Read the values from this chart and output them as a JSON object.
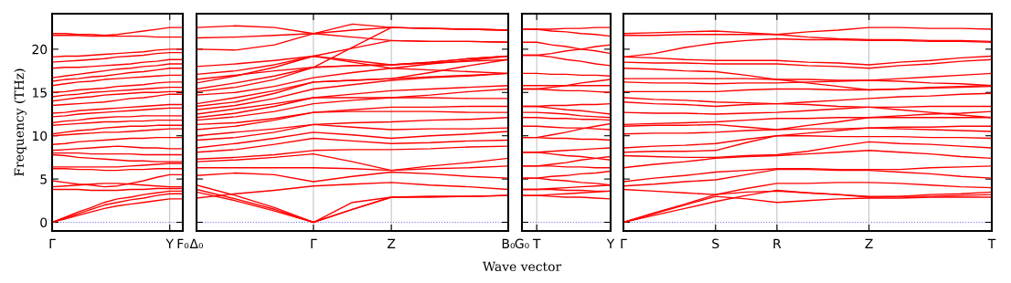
{
  "chart_data": [
    {
      "type": "line",
      "ylabel": "Frequency (THz)",
      "categories": [
        "Γ",
        null,
        null,
        null,
        null,
        null,
        null,
        null,
        null,
        "Y",
        "F₀"
      ],
      "ylim": [
        -1,
        24.1
      ],
      "yticks": [
        0,
        5,
        10,
        15,
        20
      ],
      "line_style": "solid",
      "marker": "none",
      "ref_lines": [
        {
          "axis": "y",
          "value": 0,
          "color": "#6b6bff",
          "line_style": "dotted"
        },
        {
          "axis": "x",
          "value": "Y",
          "color": "#b0b0b0",
          "line_style": "solid"
        }
      ],
      "series": [
        {
          "color": "#ff0000",
          "values": [
            0,
            0.4,
            0.8,
            1.2,
            1.6,
            1.9,
            2.1,
            2.3,
            2.5,
            2.7,
            2.7
          ]
        },
        {
          "color": "#ff0000",
          "values": [
            0,
            0.5,
            1.0,
            1.5,
            2.0,
            2.3,
            2.6,
            2.8,
            3.1,
            3.3,
            3.3
          ]
        },
        {
          "color": "#ff0000",
          "values": [
            0,
            0.6,
            1.2,
            1.7,
            2.3,
            2.7,
            2.9,
            3.2,
            3.4,
            3.6,
            3.6
          ]
        },
        {
          "color": "#ff0000",
          "values": [
            3.8,
            3.8,
            3.8,
            3.7,
            3.7,
            3.7,
            3.8,
            3.8,
            3.9,
            3.9,
            3.9
          ]
        },
        {
          "color": "#ff0000",
          "values": [
            4.1,
            4.2,
            4.3,
            4.4,
            4.5,
            4.5,
            4.4,
            4.3,
            4.2,
            4.1,
            4.1
          ]
        },
        {
          "color": "#ff0000",
          "values": [
            4.8,
            4.6,
            4.4,
            4.3,
            4.1,
            4.2,
            4.5,
            4.8,
            5.2,
            5.5,
            5.5
          ]
        },
        {
          "color": "#ff0000",
          "values": [
            6.2,
            6.2,
            6.1,
            6.1,
            6.0,
            6.0,
            6.1,
            6.1,
            6.2,
            6.2,
            6.2
          ]
        },
        {
          "color": "#ff0000",
          "values": [
            6.4,
            6.4,
            6.4,
            6.4,
            6.4,
            6.4,
            6.5,
            6.6,
            6.7,
            6.8,
            6.8
          ]
        },
        {
          "color": "#ff0000",
          "values": [
            7.8,
            7.7,
            7.5,
            7.4,
            7.3,
            7.2,
            7.1,
            7.1,
            7.0,
            7.0,
            7.0
          ]
        },
        {
          "color": "#ff0000",
          "values": [
            8.0,
            8.0,
            8.0,
            7.9,
            7.9,
            7.9,
            7.9,
            7.8,
            7.8,
            7.8,
            7.8
          ]
        },
        {
          "color": "#ff0000",
          "values": [
            8.3,
            8.4,
            8.5,
            8.6,
            8.7,
            8.8,
            8.7,
            8.6,
            8.6,
            8.5,
            8.5
          ]
        },
        {
          "color": "#ff0000",
          "values": [
            9.0,
            9.1,
            9.3,
            9.4,
            9.5,
            9.6,
            9.7,
            9.7,
            9.8,
            9.8,
            9.8
          ]
        },
        {
          "color": "#ff0000",
          "values": [
            10.0,
            10.1,
            10.2,
            10.3,
            10.4,
            10.4,
            10.5,
            10.6,
            10.7,
            10.8,
            10.8
          ]
        },
        {
          "color": "#ff0000",
          "values": [
            10.2,
            10.4,
            10.6,
            10.7,
            10.9,
            11.0,
            11.1,
            11.1,
            11.2,
            11.2,
            11.2
          ]
        },
        {
          "color": "#ff0000",
          "values": [
            11.2,
            11.3,
            11.4,
            11.5,
            11.6,
            11.6,
            11.7,
            11.7,
            11.8,
            11.8,
            11.8
          ]
        },
        {
          "color": "#ff0000",
          "values": [
            11.5,
            11.7,
            11.8,
            12.0,
            12.1,
            12.2,
            12.2,
            12.3,
            12.3,
            12.3,
            12.3
          ]
        },
        {
          "color": "#ff0000",
          "values": [
            12.2,
            12.3,
            12.5,
            12.6,
            12.7,
            12.8,
            12.9,
            13.0,
            13.1,
            13.2,
            13.2
          ]
        },
        {
          "color": "#ff0000",
          "values": [
            12.6,
            12.7,
            12.9,
            13.0,
            13.1,
            13.2,
            13.3,
            13.4,
            13.5,
            13.6,
            13.6
          ]
        },
        {
          "color": "#ff0000",
          "values": [
            13.5,
            13.6,
            13.7,
            13.8,
            13.9,
            14.1,
            14.3,
            14.4,
            14.6,
            14.8,
            14.8
          ]
        },
        {
          "color": "#ff0000",
          "values": [
            14.0,
            14.2,
            14.4,
            14.5,
            14.7,
            14.8,
            14.9,
            15.0,
            15.0,
            15.1,
            15.1
          ]
        },
        {
          "color": "#ff0000",
          "values": [
            14.5,
            14.7,
            14.8,
            15.0,
            15.1,
            15.2,
            15.3,
            15.4,
            15.5,
            15.6,
            15.6
          ]
        },
        {
          "color": "#ff0000",
          "values": [
            15.0,
            15.1,
            15.3,
            15.4,
            15.5,
            15.7,
            15.8,
            15.9,
            16.1,
            16.2,
            16.2
          ]
        },
        {
          "color": "#ff0000",
          "values": [
            15.8,
            16.0,
            16.2,
            16.3,
            16.5,
            16.6,
            16.7,
            16.8,
            16.9,
            17.0,
            17.0
          ]
        },
        {
          "color": "#ff0000",
          "values": [
            16.3,
            16.5,
            16.6,
            16.8,
            16.9,
            17.1,
            17.3,
            17.4,
            17.6,
            17.8,
            17.8
          ]
        },
        {
          "color": "#ff0000",
          "values": [
            16.7,
            16.9,
            17.1,
            17.3,
            17.5,
            17.7,
            17.8,
            18.0,
            18.1,
            18.3,
            18.3
          ]
        },
        {
          "color": "#ff0000",
          "values": [
            17.8,
            17.9,
            17.9,
            18.0,
            18.1,
            18.2,
            18.3,
            18.5,
            18.6,
            18.8,
            18.8
          ]
        },
        {
          "color": "#ff0000",
          "values": [
            18.5,
            18.6,
            18.7,
            18.8,
            18.9,
            19.1,
            19.2,
            19.3,
            19.5,
            19.6,
            19.6
          ]
        },
        {
          "color": "#ff0000",
          "values": [
            19.1,
            19.2,
            19.2,
            19.3,
            19.4,
            19.5,
            19.6,
            19.7,
            19.9,
            20.0,
            20.0
          ]
        },
        {
          "color": "#ff0000",
          "values": [
            21.6,
            21.6,
            21.6,
            21.5,
            21.5,
            21.5,
            21.5,
            21.5,
            21.4,
            21.4,
            21.4
          ]
        },
        {
          "color": "#ff0000",
          "values": [
            21.8,
            21.8,
            21.7,
            21.7,
            21.6,
            21.7,
            21.9,
            22.1,
            22.3,
            22.5,
            22.5
          ]
        }
      ]
    },
    {
      "type": "line",
      "categories": [
        "Δ₀",
        null,
        null,
        "Γ",
        null,
        "Z",
        null,
        null,
        "B₀"
      ],
      "ylim": [
        -1,
        24.1
      ],
      "yticks": [
        0,
        5,
        10,
        15,
        20
      ],
      "tick_labels": "x",
      "grid": "x",
      "line_style": "solid",
      "marker": "none",
      "ref_lines": [
        {
          "axis": "y",
          "value": 0,
          "color": "#6b6bff",
          "line_style": "dotted"
        }
      ],
      "series": [
        {
          "color": "#ff0000",
          "values": [
            2.8,
            3.3,
            3.7,
            4.2,
            4.4,
            4.6,
            4.3,
            4.1,
            3.8
          ]
        },
        {
          "color": "#ff0000",
          "values": [
            3.5,
            2.5,
            1.3,
            0,
            1.5,
            2.9,
            3.0,
            3.0,
            3.1
          ]
        },
        {
          "color": "#ff0000",
          "values": [
            3.8,
            2.7,
            1.5,
            0,
            1.5,
            2.9,
            3.0,
            3.0,
            3.1
          ]
        },
        {
          "color": "#ff0000",
          "values": [
            4.3,
            3.1,
            1.7,
            0,
            2.3,
            2.9,
            2.9,
            3.0,
            3.1
          ]
        },
        {
          "color": "#ff0000",
          "values": [
            5.4,
            5.7,
            5.5,
            4.7,
            5.3,
            5.8,
            5.6,
            5.3,
            5.1
          ]
        },
        {
          "color": "#ff0000",
          "values": [
            6.3,
            6.3,
            6.3,
            6.3,
            6.2,
            6.0,
            6.2,
            6.3,
            6.5
          ]
        },
        {
          "color": "#ff0000",
          "values": [
            7.0,
            7.2,
            7.5,
            7.9,
            7.0,
            6.0,
            6.5,
            6.9,
            7.4
          ]
        },
        {
          "color": "#ff0000",
          "values": [
            7.3,
            7.5,
            7.8,
            8.3,
            8.4,
            8.4,
            8.5,
            8.7,
            8.8
          ]
        },
        {
          "color": "#ff0000",
          "values": [
            8.1,
            8.4,
            9.0,
            9.7,
            9.4,
            9.1,
            9.2,
            9.4,
            9.5
          ]
        },
        {
          "color": "#ff0000",
          "values": [
            8.6,
            9.1,
            9.7,
            10.4,
            10.1,
            9.7,
            10.0,
            10.2,
            10.5
          ]
        },
        {
          "color": "#ff0000",
          "values": [
            9.5,
            9.8,
            10.4,
            11.3,
            11.0,
            10.7,
            10.8,
            10.8,
            10.9
          ]
        },
        {
          "color": "#ff0000",
          "values": [
            10.0,
            10.4,
            10.8,
            11.3,
            11.5,
            11.6,
            11.8,
            11.9,
            12.1
          ]
        },
        {
          "color": "#ff0000",
          "values": [
            10.7,
            11.1,
            11.8,
            12.7,
            12.8,
            12.8,
            12.8,
            12.7,
            12.7
          ]
        },
        {
          "color": "#ff0000",
          "values": [
            11.3,
            11.5,
            12.0,
            12.7,
            13.0,
            13.3,
            13.3,
            13.4,
            13.4
          ]
        },
        {
          "color": "#ff0000",
          "values": [
            11.8,
            12.2,
            12.8,
            13.7,
            14.1,
            14.4,
            14.4,
            14.3,
            14.3
          ]
        },
        {
          "color": "#ff0000",
          "values": [
            12.1,
            12.6,
            13.4,
            14.4,
            14.4,
            14.4,
            14.7,
            15.1,
            15.4
          ]
        },
        {
          "color": "#ff0000",
          "values": [
            12.5,
            13.1,
            13.7,
            14.4,
            14.8,
            15.2,
            15.4,
            15.6,
            15.8
          ]
        },
        {
          "color": "#ff0000",
          "values": [
            13.0,
            13.5,
            14.3,
            15.4,
            15.9,
            16.4,
            16.7,
            16.9,
            17.2
          ]
        },
        {
          "color": "#ff0000",
          "values": [
            13.4,
            13.9,
            14.9,
            16.2,
            16.4,
            16.6,
            16.8,
            17.0,
            17.2
          ]
        },
        {
          "color": "#ff0000",
          "values": [
            13.7,
            14.4,
            15.2,
            16.2,
            16.4,
            16.6,
            17.3,
            18.1,
            18.8
          ]
        },
        {
          "color": "#ff0000",
          "values": [
            14.7,
            15.0,
            15.7,
            16.7,
            17.3,
            17.8,
            18.3,
            18.7,
            19.2
          ]
        },
        {
          "color": "#ff0000",
          "values": [
            15.1,
            15.6,
            16.5,
            17.9,
            18.1,
            18.2,
            18.5,
            18.9,
            19.2
          ]
        },
        {
          "color": "#ff0000",
          "values": [
            15.4,
            16.1,
            16.9,
            17.9,
            18.1,
            18.2,
            18.4,
            18.6,
            18.8
          ]
        },
        {
          "color": "#ff0000",
          "values": [
            16.1,
            16.9,
            17.9,
            19.2,
            20.1,
            21.0,
            20.9,
            20.9,
            20.8
          ]
        },
        {
          "color": "#ff0000",
          "values": [
            16.5,
            17.0,
            17.5,
            17.9,
            20.2,
            22.5,
            22.4,
            22.3,
            22.2
          ]
        },
        {
          "color": "#ff0000",
          "values": [
            17.1,
            17.5,
            18.2,
            19.2,
            18.7,
            18.2,
            18.5,
            18.9,
            19.2
          ]
        },
        {
          "color": "#ff0000",
          "values": [
            18.0,
            18.3,
            18.7,
            19.2,
            18.5,
            17.8,
            17.6,
            17.4,
            17.2
          ]
        },
        {
          "color": "#ff0000",
          "values": [
            20.0,
            19.9,
            20.5,
            21.8,
            22.2,
            22.5,
            22.4,
            22.3,
            22.2
          ]
        },
        {
          "color": "#ff0000",
          "values": [
            21.3,
            21.4,
            21.6,
            21.8,
            21.4,
            21.0,
            20.9,
            20.9,
            20.8
          ]
        },
        {
          "color": "#ff0000",
          "values": [
            22.5,
            22.7,
            22.5,
            21.8,
            22.9,
            22.5,
            22.4,
            22.3,
            22.2
          ]
        }
      ]
    },
    {
      "type": "line",
      "xlabel": "Wave vector",
      "categories": [
        "G₀",
        "T",
        null,
        null,
        null,
        null,
        "Y"
      ],
      "ylim": [
        -1,
        24.1
      ],
      "yticks": [
        0,
        5,
        10,
        15,
        20
      ],
      "tick_labels": "x",
      "line_style": "solid",
      "marker": "none",
      "ref_lines": [
        {
          "axis": "y",
          "value": 0,
          "color": "#6b6bff",
          "line_style": "dotted"
        },
        {
          "axis": "x",
          "value": "T",
          "color": "#b0b0b0",
          "line_style": "solid"
        }
      ],
      "series": [
        {
          "color": "#ff0000",
          "values": [
            22.3,
            22.3,
            22.3,
            22.4,
            22.4,
            22.5,
            22.5
          ]
        },
        {
          "color": "#ff0000",
          "values": [
            22.3,
            22.3,
            22.1,
            22.0,
            21.8,
            21.7,
            21.5
          ]
        },
        {
          "color": "#ff0000",
          "values": [
            20.8,
            20.8,
            20.5,
            20.3,
            20.0,
            19.8,
            19.5
          ]
        },
        {
          "color": "#ff0000",
          "values": [
            19.3,
            19.3,
            19.5,
            19.8,
            20.0,
            20.3,
            20.5
          ]
        },
        {
          "color": "#ff0000",
          "values": [
            19.3,
            19.3,
            19.1,
            18.8,
            18.6,
            18.3,
            18.1
          ]
        },
        {
          "color": "#ff0000",
          "values": [
            17.2,
            17.2,
            17.1,
            17.1,
            17.0,
            17.0,
            16.9
          ]
        },
        {
          "color": "#ff0000",
          "values": [
            15.8,
            15.8,
            15.8,
            15.8,
            15.8,
            15.8,
            15.8
          ]
        },
        {
          "color": "#ff0000",
          "values": [
            15.4,
            15.4,
            15.3,
            15.2,
            15.2,
            15.1,
            15.0
          ]
        },
        {
          "color": "#ff0000",
          "values": [
            15.4,
            15.4,
            15.6,
            15.8,
            16.1,
            16.3,
            16.5
          ]
        },
        {
          "color": "#ff0000",
          "values": [
            13.4,
            13.4,
            13.5,
            13.5,
            13.6,
            13.6,
            13.7
          ]
        },
        {
          "color": "#ff0000",
          "values": [
            13.4,
            13.4,
            13.2,
            13.0,
            12.9,
            12.7,
            12.5
          ]
        },
        {
          "color": "#ff0000",
          "values": [
            12.7,
            12.7,
            12.6,
            12.5,
            12.3,
            12.2,
            12.1
          ]
        },
        {
          "color": "#ff0000",
          "values": [
            12.1,
            12.1,
            12.0,
            12.0,
            11.9,
            11.9,
            11.8
          ]
        },
        {
          "color": "#ff0000",
          "values": [
            11.1,
            11.1,
            11.0,
            10.9,
            10.9,
            10.8,
            10.7
          ]
        },
        {
          "color": "#ff0000",
          "values": [
            9.8,
            9.8,
            9.7,
            9.7,
            9.6,
            9.6,
            9.5
          ]
        },
        {
          "color": "#ff0000",
          "values": [
            9.8,
            9.8,
            10.1,
            10.4,
            10.8,
            11.1,
            11.4
          ]
        },
        {
          "color": "#ff0000",
          "values": [
            8.1,
            8.1,
            8.2,
            8.3,
            8.4,
            8.5,
            8.6
          ]
        },
        {
          "color": "#ff0000",
          "values": [
            8.1,
            8.1,
            7.9,
            7.7,
            7.6,
            7.4,
            7.2
          ]
        },
        {
          "color": "#ff0000",
          "values": [
            6.5,
            6.5,
            6.5,
            6.4,
            6.4,
            6.3,
            6.3
          ]
        },
        {
          "color": "#ff0000",
          "values": [
            6.5,
            6.5,
            6.7,
            6.9,
            7.2,
            7.4,
            7.6
          ]
        },
        {
          "color": "#ff0000",
          "values": [
            5.1,
            5.1,
            4.9,
            4.8,
            4.6,
            4.5,
            4.3
          ]
        },
        {
          "color": "#ff0000",
          "values": [
            5.1,
            5.1,
            5.3,
            5.4,
            5.6,
            5.7,
            5.9
          ]
        },
        {
          "color": "#ff0000",
          "values": [
            3.8,
            3.8,
            3.8,
            3.7,
            3.7,
            3.6,
            3.6
          ]
        },
        {
          "color": "#ff0000",
          "values": [
            3.8,
            3.8,
            3.9,
            4.0,
            4.1,
            4.2,
            4.3
          ]
        },
        {
          "color": "#ff0000",
          "values": [
            3.1,
            3.1,
            3.0,
            2.9,
            2.9,
            2.8,
            2.7
          ]
        },
        {
          "color": "#ff0000",
          "values": [
            3.1,
            3.1,
            3.2,
            3.3,
            3.4,
            3.5,
            3.6
          ]
        }
      ]
    },
    {
      "type": "line",
      "categories": [
        "Γ",
        null,
        null,
        "S",
        null,
        "R",
        null,
        null,
        "Z",
        null,
        null,
        null,
        "T"
      ],
      "ylim": [
        -1,
        24.1
      ],
      "yticks": [
        0,
        5,
        10,
        15,
        20
      ],
      "tick_labels": "x",
      "grid": "x",
      "line_style": "solid",
      "marker": "none",
      "ref_lines": [
        {
          "axis": "y",
          "value": 0,
          "color": "#6b6bff",
          "line_style": "dotted"
        }
      ],
      "series": [
        {
          "color": "#ff0000",
          "values": [
            0,
            1.0,
            2.0,
            3.0,
            2.7,
            2.3,
            2.5,
            2.7,
            2.8,
            2.8,
            2.9,
            2.9,
            2.9
          ]
        },
        {
          "color": "#ff0000",
          "values": [
            0,
            0.8,
            1.6,
            2.4,
            3.1,
            3.7,
            3.4,
            3.2,
            2.9,
            3.0,
            3.2,
            3.3,
            3.5
          ]
        },
        {
          "color": "#ff0000",
          "values": [
            0,
            1.1,
            2.1,
            3.2,
            3.9,
            4.5,
            4.5,
            4.6,
            4.6,
            4.5,
            4.3,
            4.1,
            4.0
          ]
        },
        {
          "color": "#ff0000",
          "values": [
            3.8,
            3.6,
            3.4,
            3.2,
            3.5,
            3.6,
            3.4,
            3.2,
            3.0,
            3.0,
            3.0,
            3.1,
            3.2
          ]
        },
        {
          "color": "#ff0000",
          "values": [
            4.2,
            4.4,
            4.7,
            4.9,
            5.5,
            6.1,
            6.1,
            6.0,
            6.0,
            5.8,
            5.6,
            5.3,
            5.1
          ]
        },
        {
          "color": "#ff0000",
          "values": [
            4.7,
            5.1,
            5.4,
            5.8,
            6.0,
            6.2,
            6.2,
            6.1,
            6.1,
            6.1,
            6.3,
            6.4,
            6.5
          ]
        },
        {
          "color": "#ff0000",
          "values": [
            6.3,
            6.7,
            7.0,
            7.4,
            7.6,
            7.7,
            7.9,
            8.1,
            8.3,
            8.1,
            7.9,
            7.6,
            7.4
          ]
        },
        {
          "color": "#ff0000",
          "values": [
            7.7,
            7.6,
            7.5,
            7.5,
            7.7,
            7.8,
            8.2,
            8.8,
            9.3,
            9.1,
            9.0,
            8.8,
            8.6
          ]
        },
        {
          "color": "#ff0000",
          "values": [
            8.1,
            8.2,
            8.2,
            8.3,
            9.2,
            10.0,
            10.0,
            9.9,
            9.9,
            9.9,
            9.8,
            9.8,
            9.7
          ]
        },
        {
          "color": "#ff0000",
          "values": [
            8.6,
            8.8,
            8.9,
            9.1,
            9.6,
            10.0,
            10.3,
            10.6,
            10.9,
            10.8,
            10.7,
            10.6,
            10.5
          ]
        },
        {
          "color": "#ff0000",
          "values": [
            10.2,
            10.3,
            10.3,
            10.4,
            10.6,
            10.7,
            10.8,
            10.8,
            10.9,
            11.0,
            11.0,
            11.1,
            11.1
          ]
        },
        {
          "color": "#ff0000",
          "values": [
            11.1,
            11.2,
            11.2,
            11.3,
            11.0,
            10.7,
            11.2,
            11.6,
            12.1,
            12.1,
            12.1,
            12.1,
            12.1
          ]
        },
        {
          "color": "#ff0000",
          "values": [
            11.3,
            11.4,
            11.5,
            11.6,
            11.8,
            12.0,
            12.0,
            12.1,
            12.1,
            12.3,
            12.5,
            12.6,
            12.8
          ]
        },
        {
          "color": "#ff0000",
          "values": [
            12.7,
            12.6,
            12.6,
            12.5,
            12.6,
            12.7,
            12.9,
            13.1,
            13.3,
            13.3,
            13.4,
            13.4,
            13.4
          ]
        },
        {
          "color": "#ff0000",
          "values": [
            13.9,
            13.7,
            13.6,
            13.4,
            13.6,
            13.7,
            13.9,
            14.1,
            14.3,
            14.5,
            14.6,
            14.8,
            14.9
          ]
        },
        {
          "color": "#ff0000",
          "values": [
            14.4,
            14.2,
            14.1,
            13.9,
            13.8,
            13.7,
            13.6,
            13.4,
            13.3,
            13.0,
            12.7,
            12.4,
            12.1
          ]
        },
        {
          "color": "#ff0000",
          "values": [
            15.1,
            15.1,
            15.1,
            15.1,
            15.3,
            15.4,
            15.4,
            15.3,
            15.3,
            15.4,
            15.5,
            15.6,
            15.7
          ]
        },
        {
          "color": "#ff0000",
          "values": [
            16.2,
            16.1,
            16.1,
            16.0,
            16.1,
            16.1,
            16.2,
            16.3,
            16.4,
            16.3,
            16.1,
            16.0,
            15.8
          ]
        },
        {
          "color": "#ff0000",
          "values": [
            16.6,
            16.6,
            16.6,
            16.6,
            16.6,
            16.5,
            16.5,
            16.4,
            16.4,
            16.6,
            16.8,
            17.0,
            17.2
          ]
        },
        {
          "color": "#ff0000",
          "values": [
            17.8,
            17.7,
            17.5,
            17.4,
            17.0,
            16.5,
            16.1,
            15.7,
            15.3,
            15.4,
            15.6,
            15.7,
            15.8
          ]
        },
        {
          "color": "#ff0000",
          "values": [
            18.5,
            18.4,
            18.4,
            18.3,
            18.3,
            18.3,
            18.1,
            18.0,
            17.8,
            18.1,
            18.3,
            18.6,
            18.8
          ]
        },
        {
          "color": "#ff0000",
          "values": [
            19.1,
            19.0,
            18.8,
            18.7,
            18.7,
            18.7,
            18.5,
            18.4,
            18.2,
            18.5,
            18.7,
            19.0,
            19.2
          ]
        },
        {
          "color": "#ff0000",
          "values": [
            19.1,
            19.5,
            20.2,
            20.7,
            21.0,
            21.2,
            21.1,
            21.1,
            21.0,
            21.0,
            20.9,
            20.9,
            20.8
          ]
        },
        {
          "color": "#ff0000",
          "values": [
            21.6,
            21.6,
            21.7,
            21.7,
            21.7,
            21.7,
            21.4,
            21.2,
            21.1,
            21.1,
            21.0,
            21.0,
            20.9
          ]
        },
        {
          "color": "#ff0000",
          "values": [
            21.8,
            21.9,
            22.0,
            22.1,
            21.9,
            21.7,
            22.0,
            22.2,
            22.5,
            22.5,
            22.4,
            22.4,
            22.3
          ]
        }
      ]
    }
  ]
}
